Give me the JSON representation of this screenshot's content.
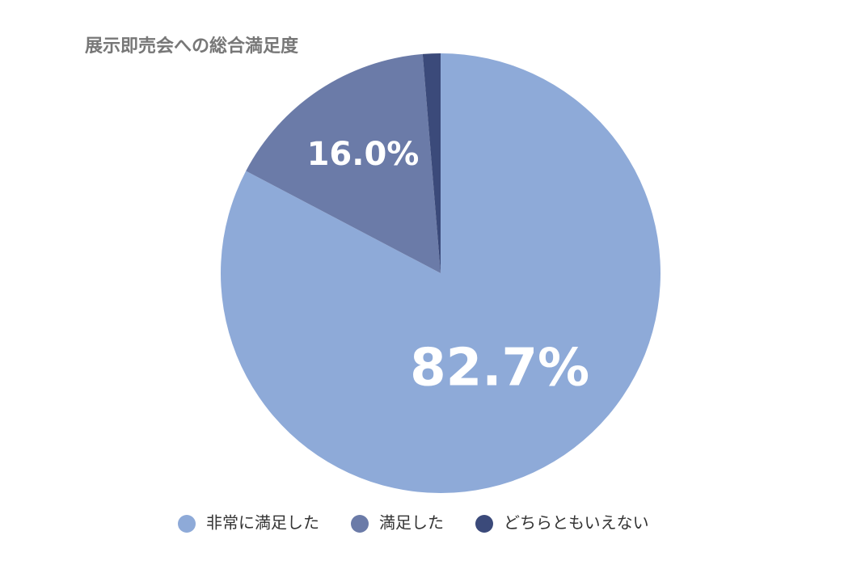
{
  "chart_data": {
    "type": "pie",
    "title": "展示即売会への総合満足度",
    "categories": [
      "非常に満足した",
      "満足した",
      "どちらともいえない"
    ],
    "values": [
      82.7,
      16.0,
      1.3
    ],
    "value_labels": [
      "82.7%",
      "16.0%",
      null
    ],
    "colors": [
      "#8eaad8",
      "#6b7ba8",
      "#3b4a7a"
    ]
  }
}
